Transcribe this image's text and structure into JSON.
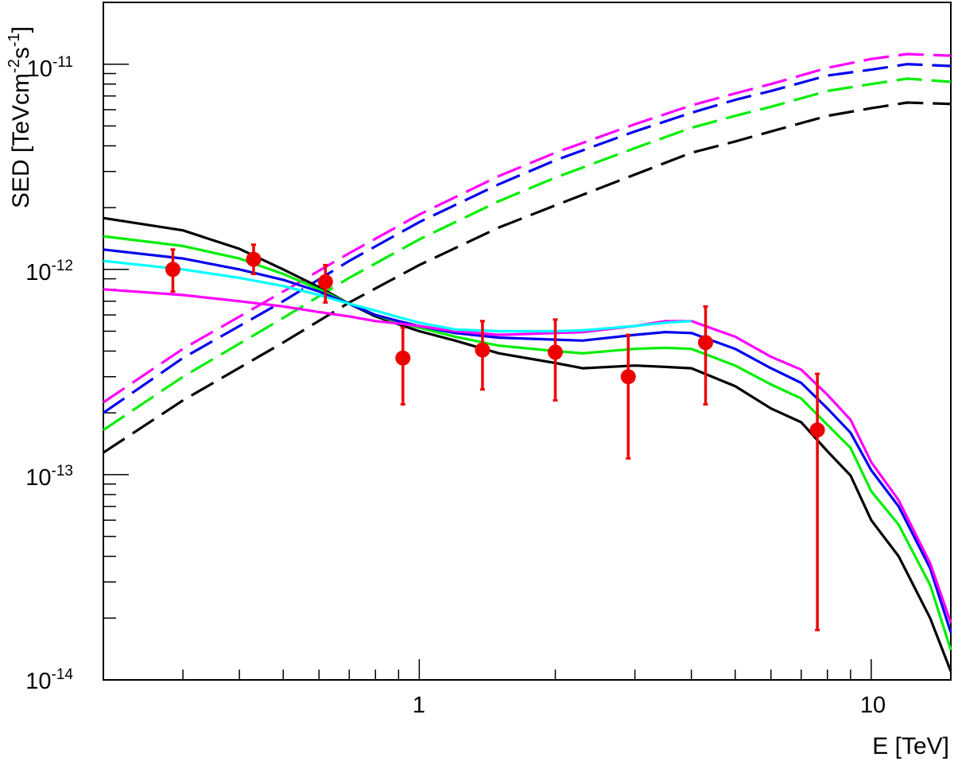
{
  "chart_data": {
    "type": "line",
    "title": "",
    "xlabel": "E [TeV]",
    "ylabel": {
      "prefix": "SED [TeVcm",
      "exp1": "-2",
      "mid": "s",
      "exp2": "-1",
      "suffix": "]"
    },
    "xscale": "log",
    "yscale": "log",
    "xlim": [
      0.2,
      15
    ],
    "ylim": [
      1e-14,
      2e-11
    ],
    "grid": false,
    "legend": "none",
    "x_tick_labels": [
      {
        "value": 1,
        "label": "1"
      },
      {
        "value": 10,
        "label": "10"
      }
    ],
    "y_tick_labels": [
      {
        "value": 1e-14,
        "base": "10",
        "exp": "-14"
      },
      {
        "value": 1e-13,
        "base": "10",
        "exp": "-13"
      },
      {
        "value": 1e-12,
        "base": "10",
        "exp": "-12"
      },
      {
        "value": 1e-11,
        "base": "10",
        "exp": "-11"
      }
    ],
    "series": [
      {
        "color": "#000000",
        "dash": false,
        "points": [
          [
            0.2,
            1.78e-12
          ],
          [
            0.3,
            1.55e-12
          ],
          [
            0.4,
            1.26e-12
          ],
          [
            0.5,
            1e-12
          ],
          [
            0.6,
            8.2e-13
          ],
          [
            0.7,
            6.8e-13
          ],
          [
            0.8,
            5.9e-13
          ],
          [
            0.9,
            5.4e-13
          ],
          [
            1.0,
            5e-13
          ],
          [
            1.2,
            4.5e-13
          ],
          [
            1.5,
            3.9e-13
          ],
          [
            2.0,
            3.5e-13
          ],
          [
            2.3,
            3.3e-13
          ],
          [
            3.0,
            3.4e-13
          ],
          [
            3.5,
            3.35e-13
          ],
          [
            4.0,
            3.3e-13
          ],
          [
            5.0,
            2.7e-13
          ],
          [
            6.0,
            2.1e-13
          ],
          [
            7.0,
            1.8e-13
          ],
          [
            8.0,
            1.3e-13
          ],
          [
            9.0,
            9.9e-14
          ],
          [
            10.0,
            6e-14
          ],
          [
            11.5,
            4e-14
          ],
          [
            13.5,
            2e-14
          ],
          [
            15.0,
            1.1e-14
          ]
        ]
      },
      {
        "color": "#00ee00",
        "dash": false,
        "points": [
          [
            0.2,
            1.45e-12
          ],
          [
            0.3,
            1.3e-12
          ],
          [
            0.4,
            1.13e-12
          ],
          [
            0.5,
            9.5e-13
          ],
          [
            0.6,
            8e-13
          ],
          [
            0.7,
            6.8e-13
          ],
          [
            0.8,
            6e-13
          ],
          [
            0.9,
            5.5e-13
          ],
          [
            1.0,
            5.2e-13
          ],
          [
            1.2,
            4.7e-13
          ],
          [
            1.5,
            4.25e-13
          ],
          [
            2.0,
            4e-13
          ],
          [
            2.3,
            3.9e-13
          ],
          [
            3.0,
            4.1e-13
          ],
          [
            3.5,
            4.15e-13
          ],
          [
            4.0,
            4.1e-13
          ],
          [
            5.0,
            3.4e-13
          ],
          [
            6.0,
            2.75e-13
          ],
          [
            7.0,
            2.35e-13
          ],
          [
            8.0,
            1.75e-13
          ],
          [
            9.0,
            1.35e-13
          ],
          [
            10.0,
            8.3e-14
          ],
          [
            11.5,
            5.7e-14
          ],
          [
            13.5,
            2.9e-14
          ],
          [
            15.0,
            1.4e-14
          ]
        ]
      },
      {
        "color": "#0000ee",
        "dash": false,
        "points": [
          [
            0.2,
            1.25e-12
          ],
          [
            0.3,
            1.13e-12
          ],
          [
            0.4,
            1e-12
          ],
          [
            0.5,
            8.9e-13
          ],
          [
            0.6,
            7.8e-13
          ],
          [
            0.7,
            6.8e-13
          ],
          [
            0.8,
            6e-13
          ],
          [
            0.9,
            5.6e-13
          ],
          [
            1.0,
            5.3e-13
          ],
          [
            1.2,
            4.9e-13
          ],
          [
            1.5,
            4.65e-13
          ],
          [
            2.0,
            4.55e-13
          ],
          [
            2.3,
            4.5e-13
          ],
          [
            3.0,
            4.8e-13
          ],
          [
            3.5,
            4.95e-13
          ],
          [
            4.0,
            4.9e-13
          ],
          [
            5.0,
            4.1e-13
          ],
          [
            6.0,
            3.3e-13
          ],
          [
            7.0,
            2.8e-13
          ],
          [
            8.0,
            2.1e-13
          ],
          [
            9.0,
            1.6e-13
          ],
          [
            10.0,
            1.05e-13
          ],
          [
            11.5,
            7e-14
          ],
          [
            13.5,
            3.5e-14
          ],
          [
            15.0,
            1.7e-14
          ]
        ]
      },
      {
        "color": "#ff00ff",
        "dash": false,
        "points": [
          [
            0.2,
            8e-13
          ],
          [
            0.3,
            7.5e-13
          ],
          [
            0.4,
            7e-13
          ],
          [
            0.5,
            6.6e-13
          ],
          [
            0.6,
            6.2e-13
          ],
          [
            0.7,
            5.9e-13
          ],
          [
            0.8,
            5.6e-13
          ],
          [
            0.9,
            5.45e-13
          ],
          [
            1.0,
            5.3e-13
          ],
          [
            1.2,
            5e-13
          ],
          [
            1.5,
            4.8e-13
          ],
          [
            2.0,
            4.9e-13
          ],
          [
            2.3,
            4.95e-13
          ],
          [
            3.0,
            5.3e-13
          ],
          [
            3.5,
            5.6e-13
          ],
          [
            4.0,
            5.6e-13
          ],
          [
            5.0,
            4.7e-13
          ],
          [
            6.0,
            3.75e-13
          ],
          [
            7.0,
            3.25e-13
          ],
          [
            8.0,
            2.45e-13
          ],
          [
            9.0,
            1.85e-13
          ],
          [
            10.0,
            1.15e-13
          ],
          [
            11.5,
            7.5e-14
          ],
          [
            13.5,
            3.7e-14
          ],
          [
            15.0,
            1.9e-14
          ]
        ]
      },
      {
        "color": "#00ffff",
        "dash": false,
        "points": [
          [
            0.2,
            1.1e-12
          ],
          [
            0.3,
            1e-12
          ],
          [
            0.4,
            9.1e-13
          ],
          [
            0.5,
            8.3e-13
          ],
          [
            0.6,
            7.5e-13
          ],
          [
            0.7,
            6.8e-13
          ],
          [
            0.8,
            6.3e-13
          ],
          [
            0.9,
            5.85e-13
          ],
          [
            1.0,
            5.5e-13
          ],
          [
            1.2,
            5.1e-13
          ],
          [
            1.5,
            5e-13
          ],
          [
            2.0,
            5e-13
          ],
          [
            2.3,
            5.05e-13
          ],
          [
            3.0,
            5.3e-13
          ],
          [
            3.5,
            5.5e-13
          ],
          [
            4.0,
            5.6e-13
          ]
        ]
      },
      {
        "color": "#000000",
        "dash": true,
        "points": [
          [
            0.2,
            1.28e-13
          ],
          [
            0.3,
            2.3e-13
          ],
          [
            0.5,
            4.4e-13
          ],
          [
            0.7,
            6.9e-13
          ],
          [
            1.0,
            1.05e-12
          ],
          [
            1.5,
            1.6e-12
          ],
          [
            2.0,
            2.05e-12
          ],
          [
            3.0,
            2.9e-12
          ],
          [
            4.0,
            3.7e-12
          ],
          [
            5.0,
            4.2e-12
          ],
          [
            6.0,
            4.7e-12
          ],
          [
            8.0,
            5.6e-12
          ],
          [
            10.0,
            6.1e-12
          ],
          [
            12.0,
            6.5e-12
          ],
          [
            15.0,
            6.4e-12
          ]
        ]
      },
      {
        "color": "#00ee00",
        "dash": true,
        "points": [
          [
            0.2,
            1.65e-13
          ],
          [
            0.3,
            3e-13
          ],
          [
            0.5,
            5.8e-13
          ],
          [
            0.7,
            9.1e-13
          ],
          [
            1.0,
            1.4e-12
          ],
          [
            1.5,
            2.15e-12
          ],
          [
            2.0,
            2.8e-12
          ],
          [
            3.0,
            3.9e-12
          ],
          [
            4.0,
            4.9e-12
          ],
          [
            5.0,
            5.6e-12
          ],
          [
            6.0,
            6.2e-12
          ],
          [
            8.0,
            7.4e-12
          ],
          [
            10.0,
            8e-12
          ],
          [
            12.0,
            8.5e-12
          ],
          [
            15.0,
            8.2e-12
          ]
        ]
      },
      {
        "color": "#0000ee",
        "dash": true,
        "points": [
          [
            0.2,
            2e-13
          ],
          [
            0.3,
            3.7e-13
          ],
          [
            0.5,
            7e-13
          ],
          [
            0.7,
            1.1e-12
          ],
          [
            1.0,
            1.7e-12
          ],
          [
            1.5,
            2.6e-12
          ],
          [
            2.0,
            3.4e-12
          ],
          [
            3.0,
            4.7e-12
          ],
          [
            4.0,
            5.8e-12
          ],
          [
            5.0,
            6.7e-12
          ],
          [
            6.0,
            7.4e-12
          ],
          [
            8.0,
            8.8e-12
          ],
          [
            10.0,
            9.4e-12
          ],
          [
            12.0,
            1e-11
          ],
          [
            15.0,
            9.8e-12
          ]
        ]
      },
      {
        "color": "#ff00ff",
        "dash": true,
        "points": [
          [
            0.2,
            2.25e-13
          ],
          [
            0.3,
            4.1e-13
          ],
          [
            0.5,
            7.8e-13
          ],
          [
            0.7,
            1.2e-12
          ],
          [
            1.0,
            1.85e-12
          ],
          [
            1.5,
            2.85e-12
          ],
          [
            2.0,
            3.7e-12
          ],
          [
            3.0,
            5.1e-12
          ],
          [
            4.0,
            6.3e-12
          ],
          [
            5.0,
            7.2e-12
          ],
          [
            6.0,
            8e-12
          ],
          [
            8.0,
            9.6e-12
          ],
          [
            10.0,
            1.06e-11
          ],
          [
            12.0,
            1.12e-11
          ],
          [
            15.0,
            1.1e-11
          ]
        ]
      }
    ],
    "data_points": {
      "color": "#ee0000",
      "points": [
        {
          "x": 0.285,
          "y": 1e-12,
          "ylo": 7.8e-13,
          "yhi": 1.25e-12
        },
        {
          "x": 0.43,
          "y": 1.12e-12,
          "ylo": 9.5e-13,
          "yhi": 1.32e-12
        },
        {
          "x": 0.62,
          "y": 8.7e-13,
          "ylo": 6.9e-13,
          "yhi": 1.05e-12
        },
        {
          "x": 0.92,
          "y": 3.7e-13,
          "ylo": 2.2e-13,
          "yhi": 5.2e-13
        },
        {
          "x": 1.38,
          "y": 4.05e-13,
          "ylo": 2.6e-13,
          "yhi": 5.6e-13
        },
        {
          "x": 2.0,
          "y": 3.95e-13,
          "ylo": 2.3e-13,
          "yhi": 5.7e-13
        },
        {
          "x": 2.9,
          "y": 3e-13,
          "ylo": 1.2e-13,
          "yhi": 4.8e-13
        },
        {
          "x": 4.3,
          "y": 4.4e-13,
          "ylo": 2.2e-13,
          "yhi": 6.6e-13
        },
        {
          "x": 7.6,
          "y": 1.65e-13,
          "ylo": 1.75e-14,
          "yhi": 3.1e-13
        }
      ]
    }
  }
}
